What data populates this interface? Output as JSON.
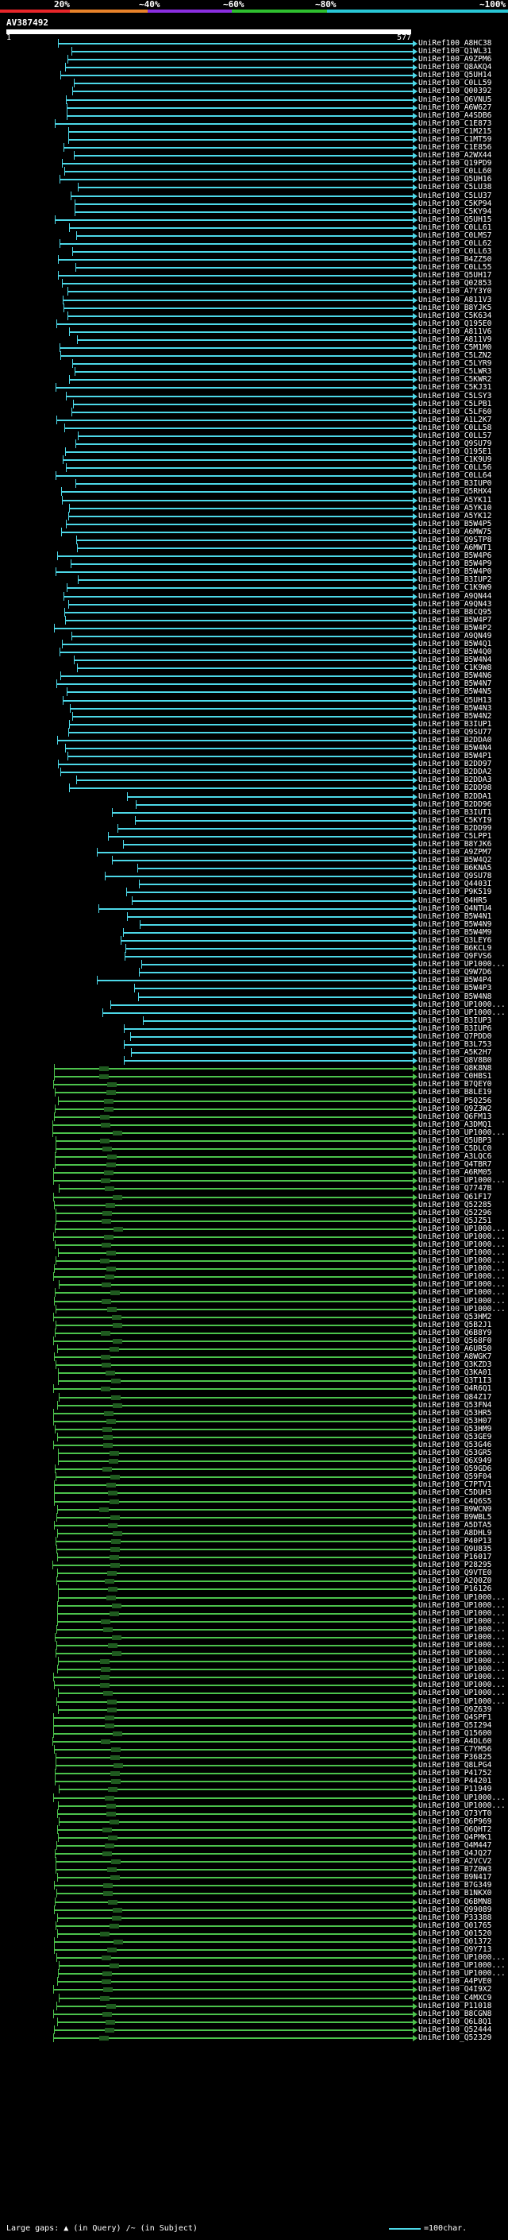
{
  "header": {
    "percent_labels": [
      "20%",
      "~40%",
      "~60%",
      "~80%",
      "~100%"
    ],
    "query_name": "AV387492",
    "query_start": "1",
    "query_end": "577"
  },
  "colors": {
    "cyan": "#4dd8e8",
    "green": "#4cc24c",
    "dark_green": "#1f5a1f",
    "red": "#e8262a",
    "orange": "#e8822a",
    "purple": "#8a2ee0",
    "ramp_green": "#2fbf2f",
    "ramp_cyan": "#29c7d6"
  },
  "hits": [
    "UniRef100_A8HC38",
    "UniRef100_Q1WL31",
    "UniRef100_A9ZPM6",
    "UniRef100_Q8AKQ4",
    "UniRef100_Q5UH14",
    "UniRef100_C0LL59",
    "UniRef100_Q00392",
    "UniRef100_Q6VNU5",
    "UniRef100_A6W627",
    "UniRef100_A4SDB6",
    "UniRef100_C1E873",
    "UniRef100_C1M215",
    "UniRef100_C1MT59",
    "UniRef100_C1E856",
    "UniRef100_A2WX44",
    "UniRef100_Q19PD9",
    "UniRef100_C0LL60",
    "UniRef100_Q5UH16",
    "UniRef100_C5LU38",
    "UniRef100_C5LU37",
    "UniRef100_C5KP94",
    "UniRef100_C5KY94",
    "UniRef100_Q5UH15",
    "UniRef100_C0LL61",
    "UniRef100_C0LMS7",
    "UniRef100_C0LL62",
    "UniRef100_C0LL63",
    "UniRef100_B4ZZ50",
    "UniRef100_C0LL55",
    "UniRef100_Q5UH17",
    "UniRef100_Q02853",
    "UniRef100_A7Y3Y0",
    "UniRef100_A811V3",
    "UniRef100_B8YJK5",
    "UniRef100_C5K634",
    "UniRef100_Q195E0",
    "UniRef100_A811V6",
    "UniRef100_A811V9",
    "UniRef100_C5M1M0",
    "UniRef100_C5LZN2",
    "UniRef100_C5LYR9",
    "UniRef100_C5LWR3",
    "UniRef100_C5KWR2",
    "UniRef100_C5KJ31",
    "UniRef100_C5LSY3",
    "UniRef100_C5LPB1",
    "UniRef100_C5LF60",
    "UniRef100_A1L2K7",
    "UniRef100_C0LL58",
    "UniRef100_C0LL57",
    "UniRef100_Q9SU79",
    "UniRef100_Q195E1",
    "UniRef100_C1K9U9",
    "UniRef100_C0LL56",
    "UniRef100_C0LL64",
    "UniRef100_B3IUP0",
    "UniRef100_Q5RHX4",
    "UniRef100_A5YK11",
    "UniRef100_A5YK10",
    "UniRef100_A5YK12",
    "UniRef100_B5W4P5",
    "UniRef100_A6MW75",
    "UniRef100_Q9STP8",
    "UniRef100_A6MWT1",
    "UniRef100_B5W4P6",
    "UniRef100_B5W4P9",
    "UniRef100_B5W4P0",
    "UniRef100_B3IUP2",
    "UniRef100_C1K9W9",
    "UniRef100_A9QN44",
    "UniRef100_A9QN43",
    "UniRef100_B8CQ95",
    "UniRef100_B5W4P7",
    "UniRef100_B5W4P2",
    "UniRef100_A9QN49",
    "UniRef100_B5W4Q1",
    "UniRef100_B5W4Q0",
    "UniRef100_B5W4N4",
    "UniRef100_C1K9W8",
    "UniRef100_B5W4N6",
    "UniRef100_B5W4N7",
    "UniRef100_B5W4N5",
    "UniRef100_Q5UH13",
    "UniRef100_B5W4N3",
    "UniRef100_B5W4N2",
    "UniRef100_B3IUP1",
    "UniRef100_Q9SU77",
    "UniRef100_B2DDA0",
    "UniRef100_B5W4N4",
    "UniRef100_B5W4P1",
    "UniRef100_B2DD97",
    "UniRef100_B2DDA2",
    "UniRef100_B2DDA3",
    "UniRef100_B2DD98",
    "UniRef100_B2DDA1",
    "UniRef100_B2DD96",
    "UniRef100_B3IUT1",
    "UniRef100_C5KYI9",
    "UniRef100_B2DD99",
    "UniRef100_C5LPP1",
    "UniRef100_B8YJK6",
    "UniRef100_A9ZPM7",
    "UniRef100_B5W4Q2",
    "UniRef100_B6KNA5",
    "UniRef100_Q9SU78",
    "UniRef100_Q4403I",
    "UniRef100_P9K519",
    "UniRef100_Q4HR5",
    "UniRef100_Q4NTU4",
    "UniRef100_B5W4N1",
    "UniRef100_B5W4N9",
    "UniRef100_B5W4M9",
    "UniRef100_Q3LEY6",
    "UniRef100_B6KCL9",
    "UniRef100_Q9FVS6",
    "UniRef100_UP1000...",
    "UniRef100_Q9W7D6",
    "UniRef100_B5W4P4",
    "UniRef100_B5W4P3",
    "UniRef100_B5W4N8",
    "UniRef100_UP1000...",
    "UniRef100_UP1000...",
    "UniRef100_B3IUP3",
    "UniRef100_B3IUP6",
    "UniRef100_Q7PDD0",
    "UniRef100_B3L753",
    "UniRef100_A5K2H7",
    "UniRef100_Q8V8B0",
    "UniRef100_Q8K8N8",
    "UniRef100_C0HBS1",
    "UniRef100_B7QEY0",
    "UniRef100_B8LE19",
    "UniRef100_P5Q256",
    "UniRef100_Q9Z3W2",
    "UniRef100_Q6FM13",
    "UniRef100_A3DMQ1",
    "UniRef100_UP1000...",
    "UniRef100_Q5UBP3",
    "UniRef100_C5DLC0",
    "UniRef100_A3LQC6",
    "UniRef100_Q4TBR7",
    "UniRef100_A6RM05",
    "UniRef100_UP1000...",
    "UniRef100_Q7747B",
    "UniRef100_Q61F17",
    "UniRef100_Q52285",
    "UniRef100_Q52296",
    "UniRef100_Q5JZ51",
    "UniRef100_UP1000...",
    "UniRef100_UP1000...",
    "UniRef100_UP1000...",
    "UniRef100_UP1000...",
    "UniRef100_UP1000...",
    "UniRef100_UP1000...",
    "UniRef100_UP1000...",
    "UniRef100_UP1000...",
    "UniRef100_UP1000...",
    "UniRef100_UP1000...",
    "UniRef100_UP1000...",
    "UniRef100_Q53HM2",
    "UniRef100_Q5B2J1",
    "UniRef100_Q6B8Y9",
    "UniRef100_Q568F0",
    "UniRef100_A6UR50",
    "UniRef100_A8WGK7",
    "UniRef100_Q3KZD3",
    "UniRef100_Q3KA01",
    "UniRef100_Q3T1I3",
    "UniRef100_Q4R6Q1",
    "UniRef100_Q84Z17",
    "UniRef100_Q53FN4",
    "UniRef100_Q53HR5",
    "UniRef100_Q53H07",
    "UniRef100_Q53HM9",
    "UniRef100_Q53GE9",
    "UniRef100_Q53G46",
    "UniRef100_Q53GR5",
    "UniRef100_Q6X949",
    "UniRef100_Q59GD6",
    "UniRef100_Q59F04",
    "UniRef100_C7PTV1",
    "UniRef100_C5DUH3",
    "UniRef100_C4Q6S5",
    "UniRef100_B9WCN9",
    "UniRef100_B9WBL5",
    "UniRef100_A5DTA5",
    "UniRef100_A8DHL9",
    "UniRef100_P40P13",
    "UniRef100_Q9U835",
    "UniRef100_P16017",
    "UniRef100_P28295",
    "UniRef100_Q9VTE0",
    "UniRef100_A2Q0Z0",
    "UniRef100_P16126",
    "UniRef100_UP1000...",
    "UniRef100_UP1000...",
    "UniRef100_UP1000...",
    "UniRef100_UP1000...",
    "UniRef100_UP1000...",
    "UniRef100_UP1000...",
    "UniRef100_UP1000...",
    "UniRef100_UP1000...",
    "UniRef100_UP1000...",
    "UniRef100_UP1000...",
    "UniRef100_UP1000...",
    "UniRef100_UP1000...",
    "UniRef100_UP1000...",
    "UniRef100_UP1000...",
    "UniRef100_Q9Z639",
    "UniRef100_Q4SPF1",
    "UniRef100_Q5I294",
    "UniRef100_Q15600",
    "UniRef100_A4DL60",
    "UniRef100_C7YM56",
    "UniRef100_P36825",
    "UniRef100_Q8LPG4",
    "UniRef100_P41752",
    "UniRef100_P44201",
    "UniRef100_P11949",
    "UniRef100_UP1000...",
    "UniRef100_UP1000...",
    "UniRef100_Q73YT0",
    "UniRef100_Q6P969",
    "UniRef100_Q6QHT2",
    "UniRef100_Q4PMK1",
    "UniRef100_Q4M447",
    "UniRef100_Q4JQ27",
    "UniRef100_A2VCV2",
    "UniRef100_B7Z0W3",
    "UniRef100_B9N417",
    "UniRef100_B7G349",
    "UniRef100_B1NKX0",
    "UniRef100_Q6BMN8",
    "UniRef100_Q99089",
    "UniRef100_P33388",
    "UniRef100_Q01765",
    "UniRef100_Q01520",
    "UniRef100_Q01372",
    "UniRef100_Q9Y713",
    "UniRef100_UP1000...",
    "UniRef100_UP1000...",
    "UniRef100_UP1000...",
    "UniRef100_A4PVE0",
    "UniRef100_Q4I9X2",
    "UniRef100_C4MXC9",
    "UniRef100_P11018",
    "UniRef100_B8CGN8",
    "UniRef100_Q6L8Q1",
    "UniRef100_Q52444",
    "UniRef100_Q52329"
  ],
  "footer": {
    "large_gaps_label": "Large gaps:",
    "in_query_label": "(in Query)",
    "separator": "/~",
    "in_subject_label": "(in Subject)",
    "scale_label": "=100char."
  }
}
